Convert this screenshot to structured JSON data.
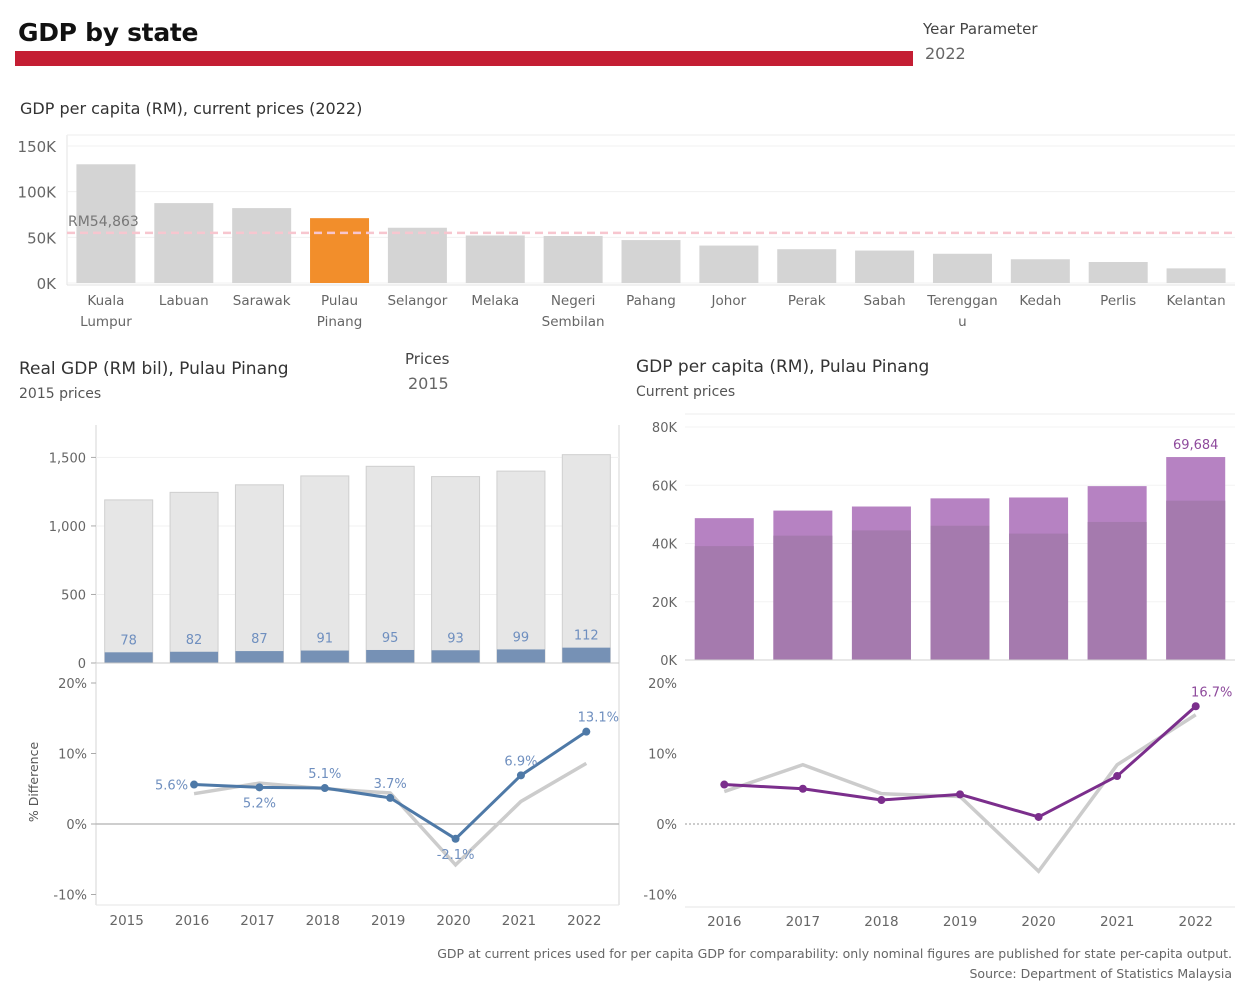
{
  "header": {
    "title": "GDP by state",
    "year_param_label": "Year Parameter",
    "year_param_value": "2022",
    "prices_label": "Prices",
    "prices_value": "2015"
  },
  "footer": {
    "note": "GDP at current prices used for per capita GDP for comparability: only nominal figures are published for state per-capita output.",
    "source": "Source: Department of Statistics Malaysia"
  },
  "colors": {
    "title_bar": "#c41e33",
    "highlight": "#f28e2b",
    "state_bar": "#d4d4d4",
    "ref_line": "#f7c6cf",
    "real_bar_bg": "#e6e6e6",
    "real_bar_fg": "#7691b5",
    "real_line": "#4e79a7",
    "compare_line": "#cccccc",
    "purple_light": "#b682c2",
    "purple_dark": "#a57aae",
    "purple_line": "#7b2e8c"
  },
  "chart_data": [
    {
      "type": "bar",
      "title": "GDP per capita (RM), current prices (2022)",
      "categories": [
        [
          "Kuala",
          "Lumpur"
        ],
        [
          "Labuan"
        ],
        [
          "Sarawak"
        ],
        [
          "Pulau",
          "Pinang"
        ],
        [
          "Selangor"
        ],
        [
          "Melaka"
        ],
        [
          "Negeri",
          "Sembilan"
        ],
        [
          "Pahang"
        ],
        [
          "Johor"
        ],
        [
          "Perak"
        ],
        [
          "Sabah"
        ],
        [
          "Terenggan",
          "u"
        ],
        [
          "Kedah"
        ],
        [
          "Perlis"
        ],
        [
          "Kelantan"
        ]
      ],
      "values": [
        130000,
        87500,
        82000,
        71000,
        60500,
        52000,
        51500,
        47000,
        41000,
        37000,
        35500,
        32000,
        26000,
        23000,
        16000
      ],
      "highlight_index": 3,
      "reference_line": {
        "value": 54863,
        "label": "RM54,863"
      },
      "yticks": [
        "0K",
        "50K",
        "100K",
        "150K"
      ],
      "ylim": [
        0,
        150000
      ]
    },
    {
      "type": "bar",
      "title": "Real GDP (RM bil), Pulau Pinang",
      "subtitle": "2015 prices",
      "x": [
        "2015",
        "2016",
        "2017",
        "2018",
        "2019",
        "2020",
        "2021",
        "2022"
      ],
      "series": [
        {
          "name": "",
          "values": [
            1190,
            1245,
            1300,
            1365,
            1435,
            1360,
            1400,
            1520
          ]
        },
        {
          "name": "",
          "values": [
            78,
            82,
            87,
            91,
            95,
            93,
            99,
            112
          ]
        }
      ],
      "data_labels": [
        "78",
        "82",
        "87",
        "91",
        "95",
        "93",
        "99",
        "112"
      ],
      "yticks": [
        "0",
        "500",
        "1,000",
        "1,500"
      ],
      "ylim": [
        0,
        1700
      ]
    },
    {
      "type": "line",
      "ylabel": "% Difference",
      "x": [
        "2015",
        "2016",
        "2017",
        "2018",
        "2019",
        "2020",
        "2021",
        "2022"
      ],
      "series": [
        {
          "name": "",
          "values": [
            null,
            5.6,
            5.2,
            5.1,
            3.7,
            -2.1,
            6.9,
            13.1
          ]
        },
        {
          "name": "",
          "values": [
            null,
            4.3,
            5.8,
            5.0,
            4.4,
            -5.8,
            3.2,
            8.6
          ]
        }
      ],
      "data_labels": [
        "5.6%",
        "5.2%",
        "5.1%",
        "3.7%",
        "-2.1%",
        "6.9%",
        "13.1%"
      ],
      "yticks": [
        "-10%",
        "0%",
        "10%",
        "20%"
      ],
      "ylim": [
        -10,
        20
      ]
    },
    {
      "type": "bar",
      "title": "GDP per capita (RM), Pulau Pinang",
      "subtitle": "Current prices",
      "x": [
        "2016",
        "2017",
        "2018",
        "2019",
        "2020",
        "2021",
        "2022"
      ],
      "series": [
        {
          "name": "",
          "values": [
            48700,
            51300,
            52700,
            55500,
            55800,
            59700,
            69684
          ]
        },
        {
          "name": "",
          "values": [
            39100,
            42700,
            44500,
            46100,
            43400,
            47400,
            54700
          ]
        }
      ],
      "data_labels": [
        "",
        "",
        "",
        "",
        "",
        "",
        "69,684"
      ],
      "yticks": [
        "0K",
        "20K",
        "40K",
        "60K",
        "80K"
      ],
      "ylim": [
        0,
        80000
      ]
    },
    {
      "type": "line",
      "x": [
        "2016",
        "2017",
        "2018",
        "2019",
        "2020",
        "2021",
        "2022"
      ],
      "series": [
        {
          "name": "",
          "values": [
            5.6,
            5.0,
            3.4,
            4.2,
            1.0,
            6.8,
            16.7
          ]
        },
        {
          "name": "",
          "values": [
            4.6,
            8.4,
            4.3,
            3.9,
            -6.7,
            8.4,
            15.5
          ]
        }
      ],
      "data_labels": [
        "",
        "",
        "",
        "",
        "",
        "",
        "16.7%"
      ],
      "yticks": [
        "-10%",
        "0%",
        "10%",
        "20%"
      ],
      "ylim": [
        -10,
        20
      ]
    }
  ]
}
